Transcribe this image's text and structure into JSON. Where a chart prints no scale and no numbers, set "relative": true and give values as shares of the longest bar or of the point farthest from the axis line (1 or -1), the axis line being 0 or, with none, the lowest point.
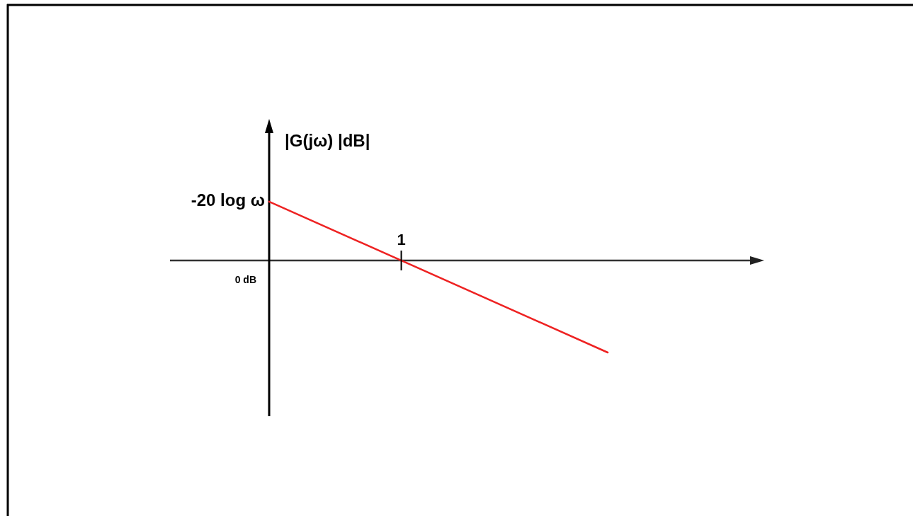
{
  "chart_data": {
    "type": "line",
    "ylabel": "|G(jω) |dB|",
    "relative": true,
    "categories": [
      null,
      null
    ],
    "series": [
      {
        "color": "#ee2222",
        "values": [
          0.64,
          -1
        ]
      }
    ],
    "annotations": [
      "-20 log ω",
      "0 dB",
      {
        "text": "1",
        "y": 0
      }
    ]
  }
}
